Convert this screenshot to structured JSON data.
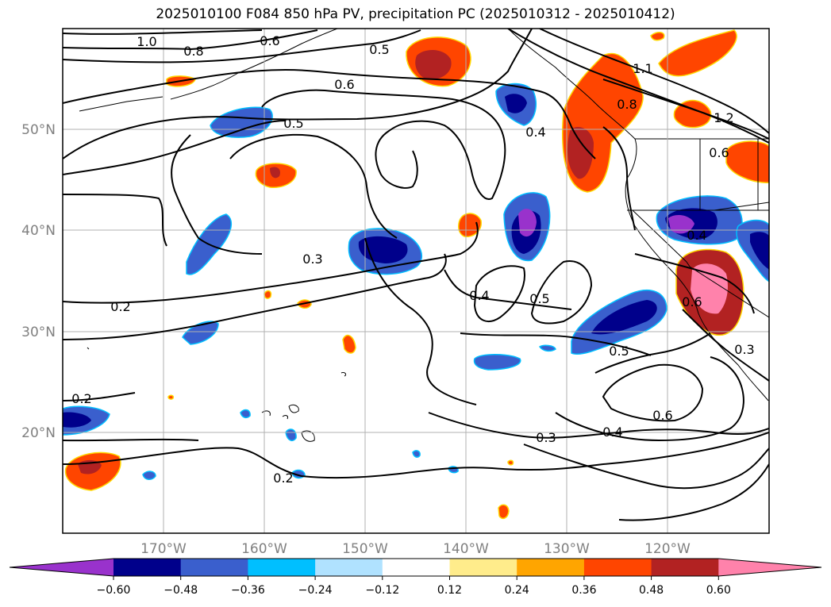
{
  "title": "2025010100 F084 850 hPa PV, precipitation PC (2025010312 - 2025010412)",
  "map": {
    "projection": "PlateCarree",
    "lon_range": [
      -180,
      -110
    ],
    "lat_range": [
      10,
      60
    ],
    "gridlines": true,
    "lat_labels": [
      {
        "lat": 50,
        "text": "50°N"
      },
      {
        "lat": 40,
        "text": "40°N"
      },
      {
        "lat": 30,
        "text": "30°N"
      },
      {
        "lat": 20,
        "text": "20°N"
      }
    ],
    "lon_labels": [
      {
        "lon": -170,
        "text": "170°W"
      },
      {
        "lon": -160,
        "text": "160°W"
      },
      {
        "lon": -150,
        "text": "150°W"
      },
      {
        "lon": -140,
        "text": "140°W"
      },
      {
        "lon": -130,
        "text": "130°W"
      },
      {
        "lon": -120,
        "text": "120°W"
      }
    ],
    "contour_labels": [
      "1.0",
      "0.8",
      "0.6",
      "0.5",
      "0.6",
      "0.5",
      "0.4",
      "0.3",
      "0.2",
      "0.2",
      "0.4",
      "0.5",
      "0.5",
      "0.6",
      "0.4",
      "0.3",
      "0.2",
      "0.8",
      "1.1",
      "1.2",
      "0.6",
      "0.3",
      "0.6",
      "0.4"
    ]
  },
  "colorbar": {
    "extend": "both",
    "colors": [
      "#9932cc",
      "#00008b",
      "#3a5fcd",
      "#00bfff",
      "#b0e2ff",
      "#ffffff",
      "#ffec8b",
      "#ffa500",
      "#ff4500",
      "#b22222",
      "#ff82ab"
    ],
    "tick_labels": [
      "−0.60",
      "−0.48",
      "−0.36",
      "−0.24",
      "−0.12",
      "0.12",
      "0.24",
      "0.36",
      "0.48",
      "0.60"
    ]
  }
}
